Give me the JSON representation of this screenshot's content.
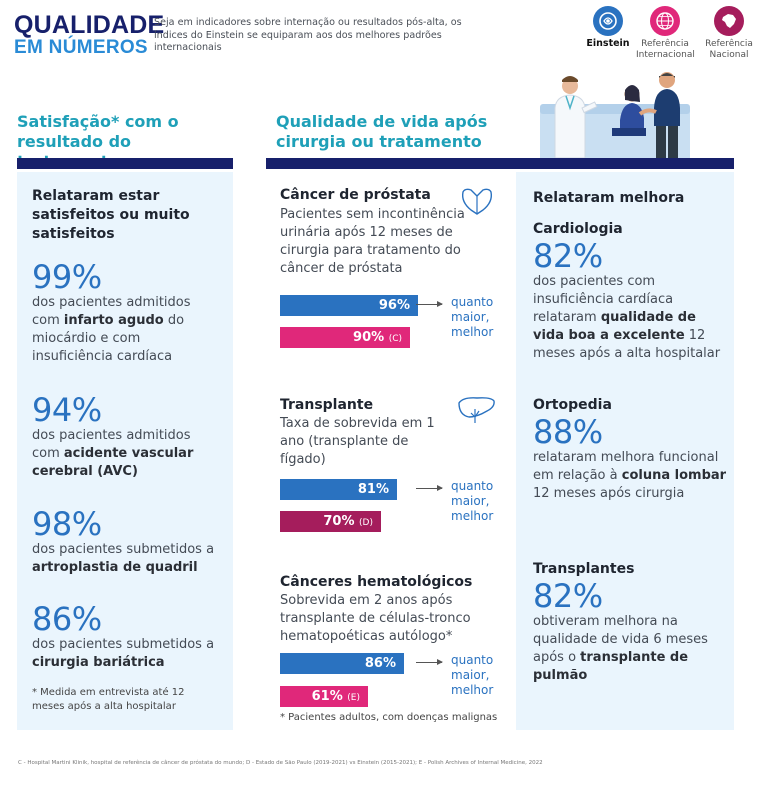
{
  "header": {
    "title_line1": "QUALIDADE",
    "title_line2": "EM NÚMEROS",
    "intro": "Seja em indicadores sobre internação ou resultados pós-alta, os índices do Einstein se equiparam aos dos melhores padrões internacionais"
  },
  "legend": [
    {
      "label": "Einstein",
      "color": "#2a72c0",
      "icon": "einstein-logo-icon"
    },
    {
      "label": "Referência Internacional",
      "color": "#e0287a",
      "icon": "globe-icon"
    },
    {
      "label": "Referência Nacional",
      "color": "#a51d5c",
      "icon": "brazil-map-icon"
    }
  ],
  "satisfaction": {
    "heading": "Satisfação* com o resultado do tratamento",
    "subhead": "Relataram estar satisfeitos ou muito satisfeitos",
    "items": [
      {
        "pct": "99%",
        "pre": "dos pacientes admitidos com ",
        "bold": "infarto agudo",
        "post": " do miocárdio e com insuficiência cardíaca"
      },
      {
        "pct": "94%",
        "pre": "dos pacientes admitidos com ",
        "bold": "acidente vascular cerebral (AVC)",
        "post": ""
      },
      {
        "pct": "98%",
        "pre": "dos pacientes submetidos a ",
        "bold": "artroplastia de quadril",
        "post": ""
      },
      {
        "pct": "86%",
        "pre": "dos pacientes submetidos a ",
        "bold": "cirurgia bariátrica",
        "post": ""
      }
    ],
    "footnote": "* Medida em entrevista até 12 meses após a alta hospitalar"
  },
  "quality": {
    "heading": "Qualidade de vida após cirurgia ou tratamento",
    "better_label": "quanto maior, melhor",
    "blocks": [
      {
        "title": "Câncer de próstata",
        "desc": "Pacientes sem incontinência urinária após 12 meses de cirurgia para tratamento do câncer de próstata",
        "icon": "prostate-icon",
        "bars": [
          {
            "value": 96,
            "label": "96%",
            "ref": "",
            "color": "#2a72c0"
          },
          {
            "value": 90,
            "label": "90%",
            "ref": "(C)",
            "color": "#e0287a"
          }
        ]
      },
      {
        "title": "Transplante",
        "desc": "Taxa de sobrevida em 1 ano (transplante de fígado)",
        "icon": "liver-icon",
        "bars": [
          {
            "value": 81,
            "label": "81%",
            "ref": "",
            "color": "#2a72c0"
          },
          {
            "value": 70,
            "label": "70%",
            "ref": "(D)",
            "color": "#a51d5c"
          }
        ]
      },
      {
        "title": "Cânceres hematológicos",
        "desc": "Sobrevida em 2 anos após transplante de células-tronco hematopoéticas autólogo*",
        "icon": "",
        "bars": [
          {
            "value": 86,
            "label": "86%",
            "ref": "",
            "color": "#2a72c0"
          },
          {
            "value": 61,
            "label": "61%",
            "ref": "(E)",
            "color": "#e0287a"
          }
        ]
      }
    ],
    "footnote": "* Pacientes adultos, com doenças malignas"
  },
  "improvement": {
    "heading": "Relataram melhora",
    "items": [
      {
        "title": "Cardiologia",
        "pct": "82%",
        "pre": "dos pacientes com insuficiência cardíaca relataram ",
        "bold": "qualidade de vida boa a excelente",
        "post": " 12 meses após a alta hospitalar"
      },
      {
        "title": "Ortopedia",
        "pct": "88%",
        "pre": "relataram melhora funcional em relação à ",
        "bold": "coluna lombar",
        "post": " 12 meses após cirurgia"
      },
      {
        "title": "Transplantes",
        "pct": "82%",
        "pre": "obtiveram melhora na qualidade de vida 6 meses após o ",
        "bold": "transplante de pulmão",
        "post": ""
      }
    ]
  },
  "footer": "C - Hospital Martini Klinik, hospital de referência de câncer de próstata do mundo; D - Estado de São Paulo (2019-2021) vs Einstein (2015-2021); E - Polish Archives of Internal Medicine, 2022"
}
